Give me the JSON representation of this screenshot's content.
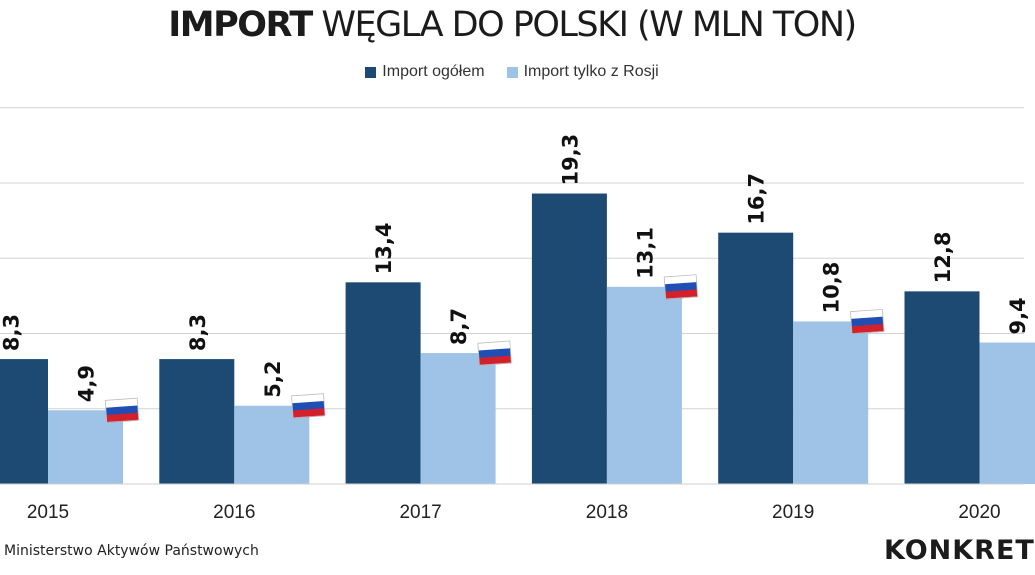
{
  "title": {
    "bold": "IMPORT",
    "rest": " WĘGLA DO POLSKI (W MLN TON)"
  },
  "legend": [
    {
      "label": "Import ogółem",
      "color": "#1d4a73"
    },
    {
      "label": "Import tylko z Rosji",
      "color": "#9fc3e6"
    }
  ],
  "chart_data": {
    "type": "bar",
    "title": "IMPORT WĘGLA DO POLSKI (W MLN TON)",
    "categories": [
      "2015",
      "2016",
      "2017",
      "2018",
      "2019",
      "2020"
    ],
    "series": [
      {
        "name": "Import ogółem",
        "values": [
          8.3,
          8.3,
          13.4,
          19.3,
          16.7,
          12.8
        ],
        "labels": [
          "8,3",
          "8,3",
          "13,4",
          "19,3",
          "16,7",
          "12,8"
        ],
        "color": "#1d4a73"
      },
      {
        "name": "Import tylko z Rosji",
        "values": [
          4.9,
          5.2,
          8.7,
          13.1,
          10.8,
          9.4
        ],
        "labels": [
          "4,9",
          "5,2",
          "8,7",
          "13,1",
          "10,8",
          "9,4"
        ],
        "color": "#9fc3e6"
      }
    ],
    "ylim": [
      0,
      25
    ],
    "grid": true,
    "legend_position": "top-center",
    "marker_icon": "russia-flag-icon"
  },
  "source": "Ministerstwo Aktywów Państwowych",
  "logo": "KONKRET"
}
